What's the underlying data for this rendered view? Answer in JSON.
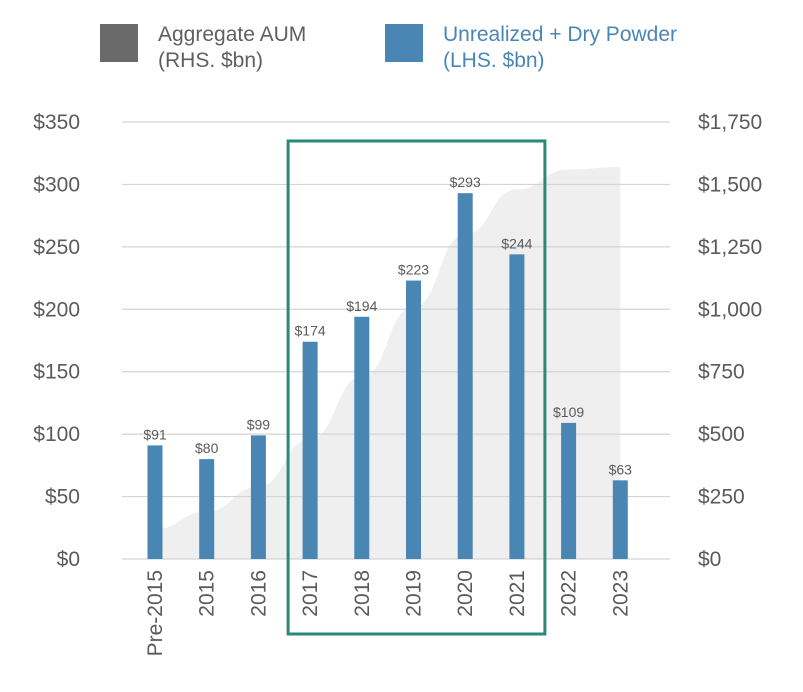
{
  "legend": {
    "aggregate_aum": {
      "line1": "Aggregate AUM",
      "line2": "(RHS. $bn)"
    },
    "unrealized_dry_powder": {
      "line1": "Unrealized + Dry Powder",
      "line2": "(LHS. $bn)"
    }
  },
  "colors": {
    "bar": "#4a86b4",
    "area": "#efefef",
    "highlight_box": "#2a8a78",
    "grid": "#d4d4d4",
    "axis_text": "#5a5a5a",
    "legend_aum": "#6a6a6a"
  },
  "chart_data": {
    "type": "bar",
    "categories": [
      "Pre-2015",
      "2015",
      "2016",
      "2017",
      "2018",
      "2019",
      "2020",
      "2021",
      "2022",
      "2023"
    ],
    "series": [
      {
        "name": "Unrealized + Dry Powder (LHS. $bn)",
        "axis": "left",
        "values": [
          91,
          80,
          99,
          174,
          194,
          223,
          293,
          244,
          109,
          63
        ]
      },
      {
        "name": "Aggregate AUM (RHS. $bn)",
        "axis": "right",
        "type": "area",
        "values": [
          120,
          190,
          290,
          480,
          730,
          1010,
          1300,
          1480,
          1560,
          1570
        ]
      }
    ],
    "data_labels": [
      "$91",
      "$80",
      "$99",
      "$174",
      "$194",
      "$223",
      "$293",
      "$244",
      "$109",
      "$63"
    ],
    "y_left": {
      "ylim": [
        0,
        350
      ],
      "ticks": [
        0,
        50,
        100,
        150,
        200,
        250,
        300,
        350
      ],
      "tick_labels": [
        "$0",
        "$50",
        "$100",
        "$150",
        "$200",
        "$250",
        "$300",
        "$350"
      ]
    },
    "y_right": {
      "ylim": [
        0,
        1750
      ],
      "ticks": [
        0,
        250,
        500,
        750,
        1000,
        1250,
        1500,
        1750
      ],
      "tick_labels": [
        "$0",
        "$250",
        "$500",
        "$750",
        "$1,000",
        "$1,250",
        "$1,500",
        "$1,750"
      ]
    },
    "highlight": {
      "from": "2017",
      "to": "2021"
    },
    "grid": true
  }
}
